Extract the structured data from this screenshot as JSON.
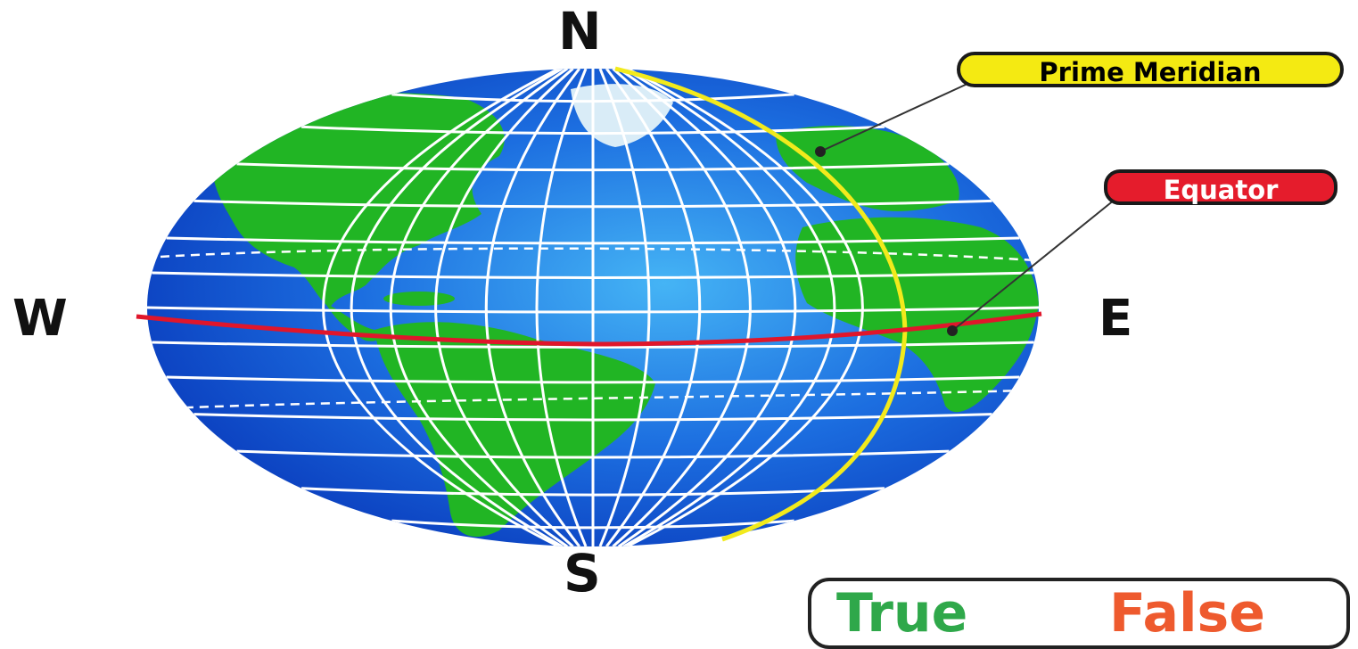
{
  "labels": {
    "north": "N",
    "south": "S",
    "west": "W",
    "east": "E",
    "prime_meridian": "Prime Meridian",
    "equator": "Equator",
    "true": "True",
    "false": "False"
  },
  "colors": {
    "ocean": "#1454d8",
    "ocean_light": "#3f9cf0",
    "land": "#21b524",
    "grid": "#ffffff",
    "prime_meridian_line": "#f2ea1c",
    "equator_line": "#e0162b",
    "prime_meridian_callout": "#f4ea12",
    "equator_callout": "#e51c2c",
    "true_text": "#2fa84a",
    "false_text": "#ee5a2e"
  }
}
